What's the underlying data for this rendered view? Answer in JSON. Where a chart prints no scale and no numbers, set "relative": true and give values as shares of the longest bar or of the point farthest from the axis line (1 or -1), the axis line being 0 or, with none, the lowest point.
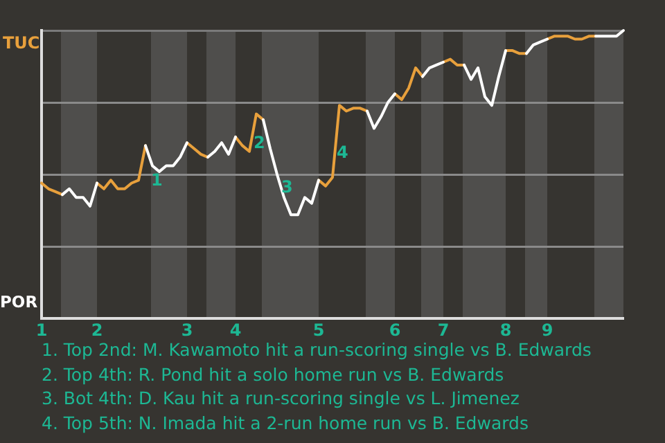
{
  "chart_data": {
    "type": "line",
    "relative": true,
    "categories": [
      "1",
      null,
      null,
      null,
      null,
      null,
      null,
      null,
      "2",
      null,
      null,
      null,
      null,
      null,
      null,
      null,
      null,
      null,
      null,
      null,
      null,
      "3",
      null,
      null,
      null,
      null,
      null,
      null,
      "4",
      null,
      null,
      null,
      null,
      null,
      null,
      null,
      null,
      null,
      null,
      null,
      "5",
      null,
      null,
      null,
      null,
      null,
      null,
      null,
      null,
      null,
      null,
      "6",
      null,
      null,
      null,
      null,
      null,
      null,
      "7",
      null,
      null,
      null,
      null,
      null,
      null,
      null,
      null,
      "8",
      null,
      null,
      null,
      null,
      null,
      "9",
      null,
      null,
      null,
      null,
      null,
      null,
      null,
      null,
      null,
      null,
      null
    ],
    "grid": "y",
    "legend": false,
    "marker": "none",
    "line_style": "solid",
    "series": [
      {
        "color": "#ffffff",
        "values": [
          null,
          null,
          null,
          0.43,
          0.45,
          0.42,
          0.42,
          0.39,
          0.47,
          null,
          null,
          null,
          null,
          null,
          null,
          0.6,
          0.53,
          0.51,
          0.53,
          0.53,
          0.56,
          0.61,
          null,
          null,
          0.56,
          0.58,
          0.61,
          0.57,
          0.63,
          null,
          null,
          null,
          0.69,
          0.59,
          0.5,
          0.42,
          0.36,
          0.36,
          0.42,
          0.4,
          0.48,
          null,
          null,
          null,
          null,
          null,
          null,
          0.72,
          0.66,
          0.7,
          0.75,
          0.78,
          null,
          null,
          null,
          0.84,
          0.87,
          0.88,
          0.89,
          null,
          null,
          0.88,
          0.83,
          0.87,
          0.77,
          0.74,
          0.84,
          0.93,
          null,
          null,
          0.92,
          0.95,
          0.96,
          0.97,
          null,
          null,
          null,
          null,
          null,
          null,
          0.98,
          0.98,
          0.98,
          0.98,
          1
        ]
      },
      {
        "color": "#e8a03c",
        "values": [
          0.47,
          0.45,
          0.44,
          0.43,
          null,
          null,
          null,
          null,
          0.47,
          0.45,
          0.48,
          0.45,
          0.45,
          0.47,
          0.48,
          0.6,
          null,
          null,
          null,
          null,
          null,
          0.61,
          0.59,
          0.57,
          0.56,
          null,
          null,
          null,
          0.63,
          0.6,
          0.58,
          0.71,
          0.69,
          null,
          null,
          null,
          null,
          null,
          null,
          null,
          0.48,
          0.46,
          0.49,
          0.74,
          0.72,
          0.73,
          0.73,
          0.72,
          null,
          null,
          null,
          0.78,
          0.76,
          0.8,
          0.87,
          0.84,
          null,
          null,
          0.89,
          0.9,
          0.88,
          0.88,
          null,
          null,
          null,
          null,
          null,
          0.93,
          0.93,
          0.92,
          0.92,
          null,
          null,
          0.97,
          0.98,
          0.98,
          0.98,
          0.97,
          0.97,
          0.98,
          0.98,
          null,
          null,
          null,
          null
        ]
      }
    ],
    "annotations": [
      "TUC",
      "POR",
      "1",
      "2",
      "3",
      "4",
      "1. Top 2nd: M. Kawamoto hit a run-scoring single vs B. Edwards",
      "2. Top 4th: R. Pond hit a solo home run vs B. Edwards",
      "3. Bot 4th: D. Kau hit a run-scoring single vs L. Jimenez",
      "4. Top 5th: N. Imada hit a 2-run home run vs B. Edwards"
    ]
  }
}
